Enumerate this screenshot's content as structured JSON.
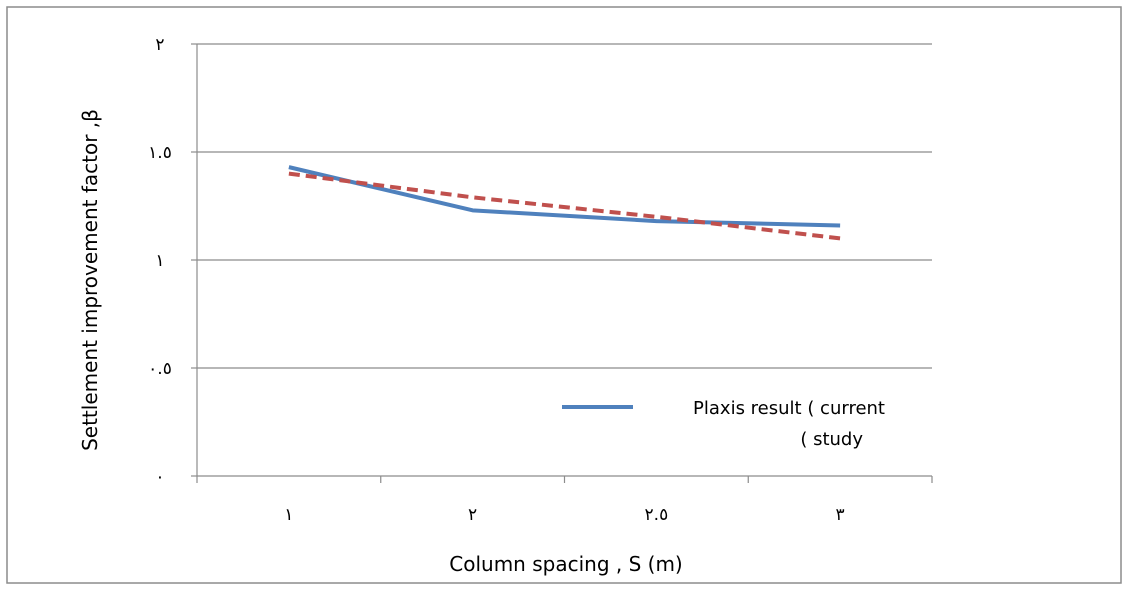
{
  "chart_data": {
    "type": "line",
    "title": "",
    "xlabel": "Column spacing , S (m)",
    "ylabel": "Settlement improvement factor ,β",
    "categories": [
      "١",
      "٢",
      "٢.٥",
      "٣"
    ],
    "ylim": [
      0,
      2
    ],
    "yticks": [
      0,
      0.5,
      1,
      1.5,
      2
    ],
    "ytick_labels": [
      "٠",
      "٠.٥",
      "١",
      "١.٥",
      "٢"
    ],
    "grid": true,
    "legend_position": "bottom-right",
    "series": [
      {
        "name": "Plaxis result ( current study (",
        "legend_lines": [
          "Plaxis result ( current",
          "( study"
        ],
        "values": [
          1.43,
          1.23,
          1.18,
          1.16
        ],
        "color": "#4f81bd",
        "style": "solid"
      },
      {
        "name": "",
        "values": [
          1.4,
          1.29,
          1.2,
          1.1
        ],
        "color": "#c0504d",
        "style": "dashed"
      }
    ]
  }
}
